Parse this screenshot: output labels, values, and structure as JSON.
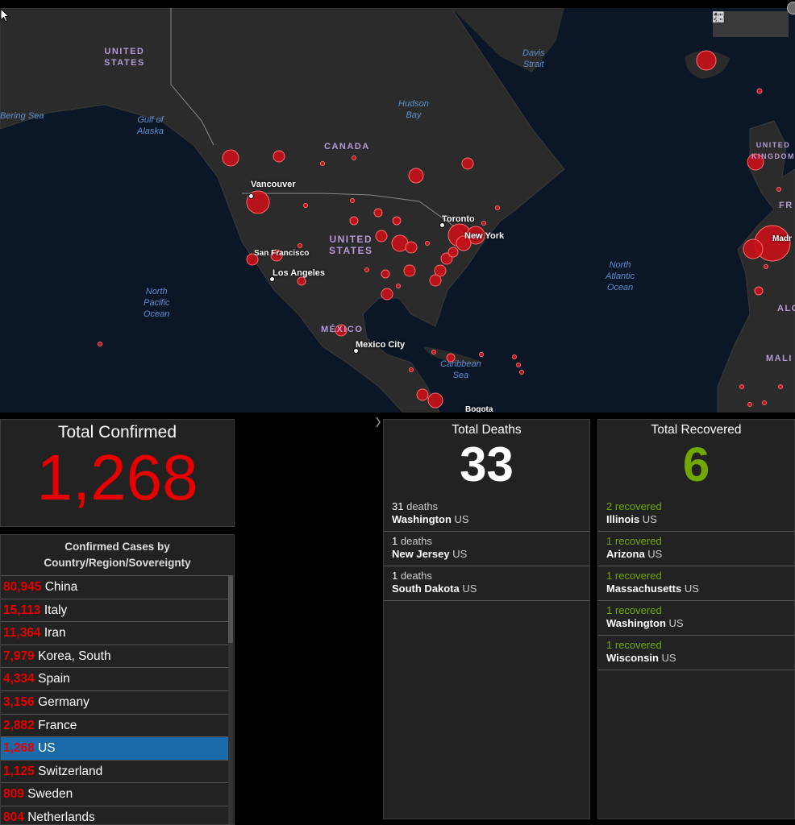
{
  "map": {
    "ocean_labels": [
      {
        "id": "bering-sea",
        "text": "Bering Sea"
      },
      {
        "id": "gulf-of-alaska",
        "text": "Gulf of\nAlaska"
      },
      {
        "id": "hudson-bay",
        "text": "Hudson\nBay"
      },
      {
        "id": "davis-strait",
        "text": "Davis\nStrait"
      },
      {
        "id": "north-pacific-ocean",
        "text": "North\nPacific\nOcean"
      },
      {
        "id": "north-atlantic-ocean",
        "text": "North\nAtlantic\nOcean"
      },
      {
        "id": "caribbean-sea",
        "text": "Caribbean\nSea"
      }
    ],
    "country_labels": [
      {
        "id": "united-states-alaska",
        "text": "UNITED\nSTATES"
      },
      {
        "id": "canada",
        "text": "CANADA"
      },
      {
        "id": "united-states",
        "text": "UNITED\nSTATES"
      },
      {
        "id": "mexico",
        "text": "MÉXICO"
      },
      {
        "id": "united-kingdom",
        "text": "UNITED\nKINGDOM"
      },
      {
        "id": "france",
        "text": "FR"
      },
      {
        "id": "algeria",
        "text": "ALG"
      },
      {
        "id": "mali",
        "text": "MALI"
      }
    ],
    "city_labels": [
      {
        "id": "vancouver",
        "text": "Vancouver"
      },
      {
        "id": "toronto",
        "text": "Toronto"
      },
      {
        "id": "new-york",
        "text": "New York"
      },
      {
        "id": "san-francisco",
        "text": "San Francisco"
      },
      {
        "id": "los-angeles",
        "text": "Los Angeles"
      },
      {
        "id": "mexico-city",
        "text": "Mexico City"
      },
      {
        "id": "madrid",
        "text": "Madr"
      },
      {
        "id": "bogota",
        "text": "Bogota"
      }
    ],
    "toolbar": {
      "bookmark_icon": "bookmark-icon",
      "legend_icon": "list-icon",
      "basemap_icon": "grid-icon"
    },
    "colors": {
      "bubble": "#c8101a",
      "land": "#2b2b2b",
      "ocean": "#0b1626"
    }
  },
  "total_confirmed": {
    "title": "Total Confirmed",
    "value": "1,268",
    "color": "#e60000"
  },
  "country_list": {
    "title": "Confirmed Cases by Country/Region/Sovereignty",
    "rows": [
      {
        "count": "80,945",
        "name": "China"
      },
      {
        "count": "15,113",
        "name": "Italy"
      },
      {
        "count": "11,364",
        "name": "Iran"
      },
      {
        "count": "7,979",
        "name": "Korea, South"
      },
      {
        "count": "4,334",
        "name": "Spain"
      },
      {
        "count": "3,156",
        "name": "Germany"
      },
      {
        "count": "2,882",
        "name": "France"
      },
      {
        "count": "1,268",
        "name": "US",
        "selected": true
      },
      {
        "count": "1,125",
        "name": "Switzerland"
      },
      {
        "count": "809",
        "name": "Sweden"
      },
      {
        "count": "804",
        "name": "Netherlands"
      }
    ]
  },
  "total_deaths": {
    "title": "Total Deaths",
    "value": "33",
    "items": [
      {
        "count": "31",
        "unit": "deaths",
        "place": "Washington",
        "country": "US"
      },
      {
        "count": "1",
        "unit": "deaths",
        "place": "New Jersey",
        "country": "US"
      },
      {
        "count": "1",
        "unit": "deaths",
        "place": "South Dakota",
        "country": "US"
      }
    ]
  },
  "total_recovered": {
    "title": "Total Recovered",
    "value": "6",
    "color": "#70a800",
    "items": [
      {
        "count": "2",
        "unit": "recovered",
        "place": "Illinois",
        "country": "US"
      },
      {
        "count": "1",
        "unit": "recovered",
        "place": "Arizona",
        "country": "US"
      },
      {
        "count": "1",
        "unit": "recovered",
        "place": "Massachusetts",
        "country": "US"
      },
      {
        "count": "1",
        "unit": "recovered",
        "place": "Washington",
        "country": "US"
      },
      {
        "count": "1",
        "unit": "recovered",
        "place": "Wisconsin",
        "country": "US"
      }
    ]
  }
}
